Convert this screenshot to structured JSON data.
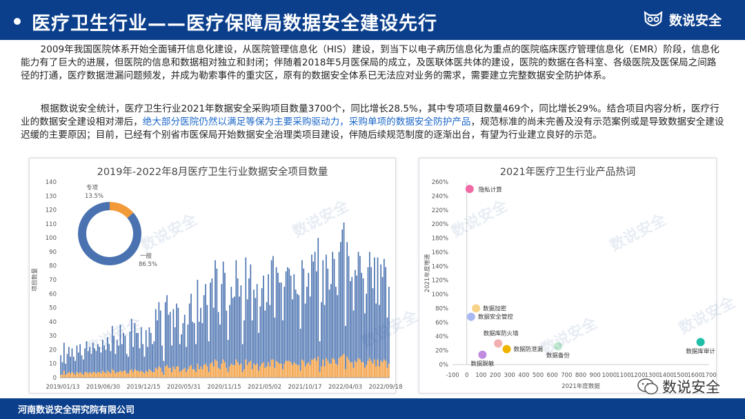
{
  "header": {
    "title": "医疗卫生行业——医疗保障局数据安全建设先行",
    "logo_text": "数说安全",
    "colors": {
      "brand": "#0b3f8c"
    }
  },
  "body": {
    "p1": "2009年我国医院体系开始全面铺开信息化建设，从医院管理信息化（HIS）建设，到当下以电子病历信息化为重点的医院临床医疗管理信息化（EMR）阶段，信息化能力有了巨大的进展，但医院的信息和数据相对独立和封闭；伴随着2018年5月医保局的成立，及医联体医共体的建设，医院的数据在各科室、各级医院及医保局之间路径的打通，医疗数据泄漏问题频发，并成为勒索事件的重灾区，原有的数据安全体系已无法应对业务的需求，需要建立完整数据安全防护体系。",
    "p2_a": "根据数说安全统计，医疗卫生行业2021年数据安全采购项目数量3700个，同比增长28.5%，其中专项项目数量469个，同比增长29%。结合项目内容分析，医疗行业的数据安全建设相对滞后，",
    "p2_highlight": "绝大部分医院仍然以满足等保为主要采购驱动力，采购单项的数据安全防护产品",
    "p2_b": "，规范标准的尚未完善及没有示范案例或是导致数据安全建设迟缓的主要原因；目前，已经有个别省市医保局开始数据安全治理类项目建设，伴随后续规范制度的逐渐出台，有望为行业建立良好的示范。"
  },
  "footer": {
    "org": "河南数说安全研究院有限公司",
    "wechat": "数说安全"
  },
  "watermark": "数说安全",
  "chart_data": [
    {
      "type": "bar",
      "title": "2019年-2022年8月医疗卫生行业数据安全项目数量",
      "ylabel": "项目数量",
      "ylim": [
        0,
        140
      ],
      "yticks": [
        0,
        10,
        20,
        30,
        40,
        50,
        60,
        70,
        80,
        90,
        100,
        110,
        120,
        130,
        140
      ],
      "x_tick_labels": [
        "2019/01/13",
        "2019/06/30",
        "2019/12/15",
        "2020/05/31",
        "2020/11/15",
        "2021/05/02",
        "2021/10/17",
        "2022/04/03",
        "2022/09/18"
      ],
      "stacked": true,
      "series": [
        {
          "name": "一般",
          "color": "#4a72b0",
          "values": [
            14,
            9,
            20,
            8,
            14,
            18,
            12,
            17,
            12,
            10,
            19,
            15,
            20,
            13,
            11,
            17,
            22,
            16,
            18,
            14,
            21,
            17,
            16,
            20,
            18,
            15,
            22,
            19,
            17,
            24,
            20,
            16,
            31,
            25,
            14,
            23,
            19,
            33,
            20,
            27,
            25,
            14,
            12,
            28,
            36,
            18,
            33,
            27,
            27,
            17,
            31,
            20,
            12,
            29,
            18,
            30,
            27,
            20,
            22,
            42,
            35,
            46,
            41,
            19,
            10,
            46,
            50,
            38,
            40,
            19,
            41,
            30,
            45,
            42,
            20,
            26,
            33,
            38,
            18,
            32,
            45,
            51,
            34,
            33,
            20,
            60,
            34,
            42,
            33,
            50,
            57,
            44,
            22,
            58,
            60,
            42,
            71,
            66,
            40,
            32,
            57,
            70,
            64,
            41,
            23,
            44,
            55,
            48,
            49,
            71,
            60,
            49,
            56,
            20,
            35,
            73,
            47,
            60,
            69,
            35,
            53,
            48,
            57,
            27,
            43,
            54,
            62,
            41,
            46,
            63,
            44,
            71,
            74,
            36,
            67,
            64,
            58,
            58,
            35,
            55,
            64,
            67,
            66,
            62,
            47,
            63,
            53,
            51,
            50,
            30,
            71,
            66,
            45,
            55,
            64,
            49,
            75,
            70,
            76,
            64,
            85,
            22,
            46,
            71,
            44,
            74,
            66,
            53,
            57,
            76,
            72,
            55,
            50,
            76,
            82,
            90,
            94,
            31,
            82,
            74,
            58,
            61,
            41,
            65,
            62,
            76,
            74,
            64,
            60,
            39,
            51,
            67,
            76,
            67,
            54,
            73,
            45,
            73,
            44,
            69,
            61,
            72,
            67,
            36,
            55
          ]
        },
        {
          "name": "专项",
          "color": "#f29a38",
          "values": [
            2,
            2,
            5,
            2,
            3,
            4,
            3,
            4,
            3,
            2,
            4,
            3,
            4,
            3,
            2,
            4,
            4,
            3,
            4,
            3,
            4,
            4,
            3,
            4,
            4,
            3,
            5,
            4,
            3,
            5,
            4,
            3,
            6,
            5,
            3,
            4,
            4,
            5,
            4,
            5,
            5,
            3,
            3,
            5,
            6,
            4,
            6,
            5,
            5,
            4,
            5,
            4,
            3,
            5,
            4,
            6,
            5,
            4,
            4,
            7,
            6,
            8,
            7,
            4,
            2,
            8,
            9,
            7,
            7,
            4,
            8,
            6,
            8,
            8,
            4,
            5,
            6,
            7,
            4,
            6,
            8,
            9,
            6,
            6,
            4,
            10,
            6,
            8,
            6,
            9,
            10,
            8,
            4,
            10,
            11,
            8,
            13,
            12,
            7,
            6,
            10,
            13,
            11,
            7,
            4,
            8,
            10,
            9,
            9,
            13,
            11,
            9,
            10,
            4,
            6,
            13,
            9,
            11,
            12,
            6,
            10,
            9,
            10,
            5,
            8,
            10,
            11,
            7,
            8,
            11,
            8,
            13,
            13,
            7,
            12,
            11,
            10,
            10,
            6,
            10,
            12,
            12,
            12,
            11,
            9,
            11,
            10,
            9,
            9,
            5,
            13,
            12,
            8,
            10,
            11,
            9,
            13,
            13,
            14,
            12,
            15,
            4,
            8,
            13,
            8,
            14,
            12,
            10,
            10,
            14,
            13,
            10,
            9,
            14,
            15,
            16,
            17,
            6,
            15,
            13,
            11,
            11,
            7,
            12,
            11,
            14,
            13,
            11,
            11,
            7,
            9,
            12,
            14,
            12,
            10,
            13,
            8,
            13,
            8,
            12,
            11,
            13,
            12,
            7,
            10
          ]
        }
      ],
      "donut": {
        "slices": [
          {
            "label": "专项",
            "value": 13.5,
            "color": "#f29a38"
          },
          {
            "label": "一般",
            "value": 86.5,
            "color": "#4a72b0"
          }
        ]
      }
    },
    {
      "type": "scatter",
      "title": "2021年医疗卫生行业产品热词",
      "xlabel": "2021年度数据",
      "ylabel": "2021年度增速",
      "xlim": [
        -100,
        1700
      ],
      "ylim": [
        0,
        260
      ],
      "x_ticks": [
        -100,
        0,
        100,
        200,
        300,
        400,
        500,
        600,
        700,
        800,
        900,
        1000,
        1100,
        1200,
        1300,
        1400,
        1500,
        1600,
        1700
      ],
      "x_tick_labels": [
        "-100",
        "0",
        "100",
        "200",
        "300",
        "400",
        "500",
        "600",
        "700",
        "800",
        "900",
        "1000",
        "1100",
        "1200",
        "1300",
        "1400",
        "1500",
        "1600",
        "1700"
      ],
      "y_ticks": [
        0,
        20,
        40,
        60,
        80,
        100,
        120,
        140,
        160,
        180,
        200,
        220,
        240,
        260
      ],
      "y_tick_labels": [
        "0%",
        "20%",
        "40%",
        "60%",
        "80%",
        "100%",
        "120%",
        "140%",
        "160%",
        "180%",
        "200%",
        "220%",
        "240%",
        "260%"
      ],
      "points": [
        {
          "label": "隐私计算",
          "x": 20,
          "y": 250,
          "color": "#f06aa5"
        },
        {
          "label": "数据加密",
          "x": 65,
          "y": 80,
          "color": "#f7d38a"
        },
        {
          "label": "数据安全管控",
          "x": 30,
          "y": 68,
          "color": "#a9b8f0"
        },
        {
          "label": "数据库防火墙",
          "x": 220,
          "y": 30,
          "color": "#f2b0b0"
        },
        {
          "label": "数据防泄漏",
          "x": 280,
          "y": 22,
          "color": "#f0b400"
        },
        {
          "label": "数据脱敏",
          "x": 110,
          "y": 14,
          "color": "#c08be0"
        },
        {
          "label": "数据备份",
          "x": 640,
          "y": 26,
          "color": "#bfe8cf"
        },
        {
          "label": "数据库审计",
          "x": 1640,
          "y": 32,
          "color": "#1fbfa8"
        }
      ]
    }
  ]
}
